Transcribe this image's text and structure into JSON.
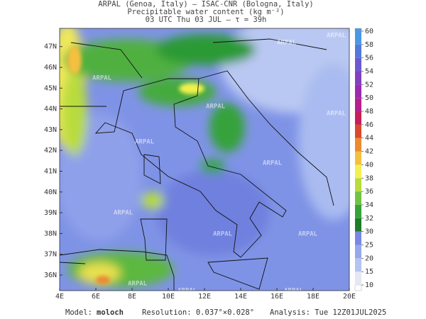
{
  "header": {
    "lines": [
      "ARPAL (Genoa, Italy)  —  ISAC-CNR (Bologna, Italy)",
      "Precipitable water content (kg m⁻²)",
      "03 UTC Thu 03 JUL  —  τ = 39h"
    ]
  },
  "map": {
    "lon_ticks": [
      "4E",
      "6E",
      "8E",
      "10E",
      "12E",
      "14E",
      "16E",
      "18E",
      "20E"
    ],
    "lat_ticks": [
      "36N",
      "37N",
      "38N",
      "39N",
      "40N",
      "41N",
      "42N",
      "43N",
      "44N",
      "45N",
      "46N",
      "47N"
    ],
    "watermark": "ARPAL"
  },
  "colorbar": {
    "levels": [
      10,
      15,
      20,
      25,
      30,
      32,
      34,
      36,
      38,
      40,
      42,
      44,
      46,
      48,
      50,
      52,
      54,
      56,
      58,
      60
    ],
    "colors": [
      "#e4e8f4",
      "#b4c4f0",
      "#94a8ec",
      "#7888e4",
      "#1e7d28",
      "#34a43a",
      "#70c444",
      "#b8dc3c",
      "#f4f050",
      "#f4c040",
      "#ec8a30",
      "#d84a2c",
      "#c81e5a",
      "#b4208c",
      "#9a2ab0",
      "#8240c0",
      "#6a5ad0",
      "#5478dc",
      "#4a98e4"
    ]
  },
  "footer": {
    "model_label": "Model:",
    "model": "moloch",
    "resolution": "Resolution: 0.037°×0.028°",
    "analysis": "Analysis: Tue 12Z01JUL2025"
  }
}
